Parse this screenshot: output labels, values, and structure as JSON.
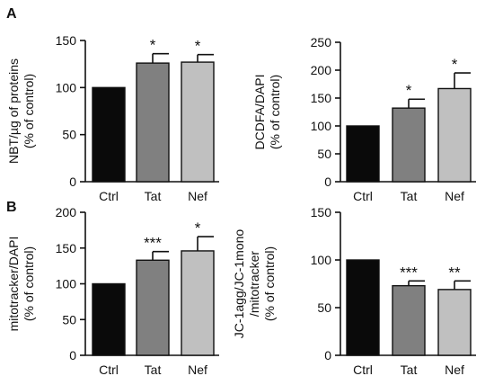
{
  "figure": {
    "panel_letters": [
      "A",
      "B"
    ]
  },
  "chart_data": [
    {
      "type": "bar",
      "panel": "A",
      "categories": [
        "Ctrl",
        "Tat",
        "Nef"
      ],
      "values": [
        100,
        126,
        127
      ],
      "errors": [
        0,
        10,
        8
      ],
      "significance": [
        "",
        "*",
        "*"
      ],
      "ylabel_lines": [
        "NBT/µg of proteins",
        "(% of control)"
      ],
      "ylim": [
        0,
        150
      ],
      "yticks": [
        0,
        50,
        100,
        150
      ],
      "bar_colors": [
        "#0a0a0a",
        "#808080",
        "#c0c0c0"
      ],
      "grid": false
    },
    {
      "type": "bar",
      "panel": "A",
      "categories": [
        "Ctrl",
        "Tat",
        "Nef"
      ],
      "values": [
        100,
        132,
        167
      ],
      "errors": [
        0,
        16,
        28
      ],
      "significance": [
        "",
        "*",
        "*"
      ],
      "ylabel_lines": [
        "DCDFA/DAPI",
        "(% of control)"
      ],
      "ylim": [
        0,
        250
      ],
      "yticks": [
        0,
        50,
        100,
        150,
        200,
        250
      ],
      "bar_colors": [
        "#0a0a0a",
        "#808080",
        "#c0c0c0"
      ],
      "grid": false
    },
    {
      "type": "bar",
      "panel": "B",
      "categories": [
        "Ctrl",
        "Tat",
        "Nef"
      ],
      "values": [
        100,
        133,
        146
      ],
      "errors": [
        0,
        12,
        20
      ],
      "significance": [
        "",
        "***",
        "*"
      ],
      "ylabel_lines": [
        "mitotracker/DAPI",
        "(% of control)"
      ],
      "ylim": [
        0,
        200
      ],
      "yticks": [
        0,
        50,
        100,
        150,
        200
      ],
      "bar_colors": [
        "#0a0a0a",
        "#808080",
        "#c0c0c0"
      ],
      "grid": false
    },
    {
      "type": "bar",
      "panel": "B",
      "categories": [
        "Ctrl",
        "Tat",
        "Nef"
      ],
      "values": [
        100,
        73,
        69
      ],
      "errors": [
        0,
        5,
        9
      ],
      "significance": [
        "",
        "***",
        "**"
      ],
      "ylabel_lines": [
        "JC-1agg/JC-1mono",
        "/mitotracker",
        "(% of control)"
      ],
      "ylim": [
        0,
        150
      ],
      "yticks": [
        0,
        50,
        100,
        150
      ],
      "bar_colors": [
        "#0a0a0a",
        "#808080",
        "#c0c0c0"
      ],
      "grid": false
    }
  ]
}
